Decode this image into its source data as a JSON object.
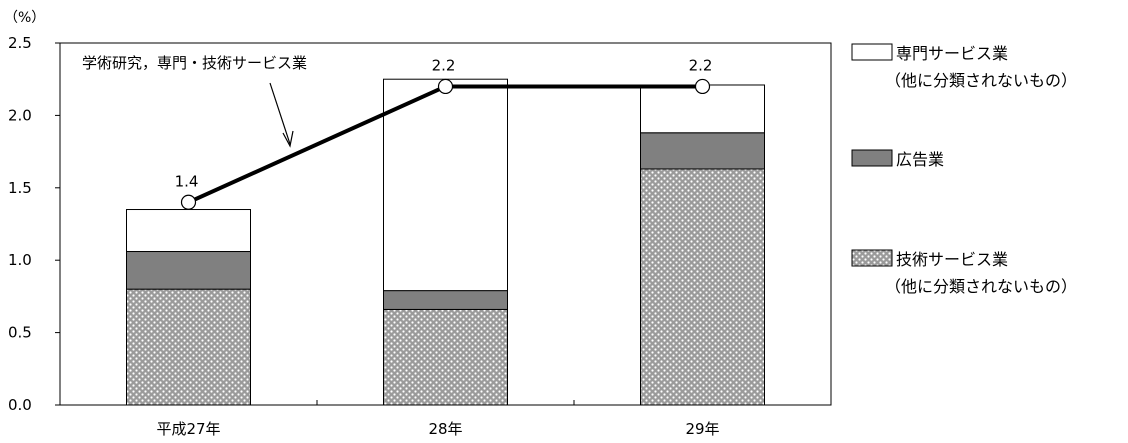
{
  "chart_data": {
    "type": "bar",
    "stacked": true,
    "unit_label": "（%）",
    "categories": [
      "平成27年",
      "28年",
      "29年"
    ],
    "ylim": [
      0,
      2.5
    ],
    "yticks": [
      "0.0",
      "0.5",
      "1.0",
      "1.5",
      "2.0",
      "2.5"
    ],
    "ytick_values": [
      0,
      0.5,
      1.0,
      1.5,
      2.0,
      2.5
    ],
    "grid": false,
    "series": [
      {
        "name": "技術サービス業（他に分類されないもの）",
        "values": [
          0.8,
          0.66,
          1.63
        ],
        "color": "#a8a8a8",
        "pattern": "dotted-hatch"
      },
      {
        "name": "広告業",
        "values": [
          0.26,
          0.13,
          0.25
        ],
        "color": "#808080",
        "pattern": "solid"
      },
      {
        "name": "専門サービス業（他に分類されないもの）",
        "values": [
          0.29,
          1.46,
          0.33
        ],
        "color": "#ffffff",
        "pattern": "none"
      }
    ],
    "line": {
      "name": "学術研究，専門・技術サービス業",
      "values": [
        1.4,
        2.2,
        2.2
      ],
      "labels": [
        "1.4",
        "2.2",
        "2.2"
      ],
      "color": "#000000"
    },
    "annotation": "学術研究，専門・技術サービス業",
    "legend": {
      "position": "right",
      "entries": [
        {
          "line1": "専門サービス業",
          "line2": "（他に分類されないもの）",
          "swatch": "white"
        },
        {
          "line1": "広告業",
          "line2": "",
          "swatch": "gray"
        },
        {
          "line1": "技術サービス業",
          "line2": "（他に分類されないもの）",
          "swatch": "pattern"
        }
      ]
    }
  }
}
